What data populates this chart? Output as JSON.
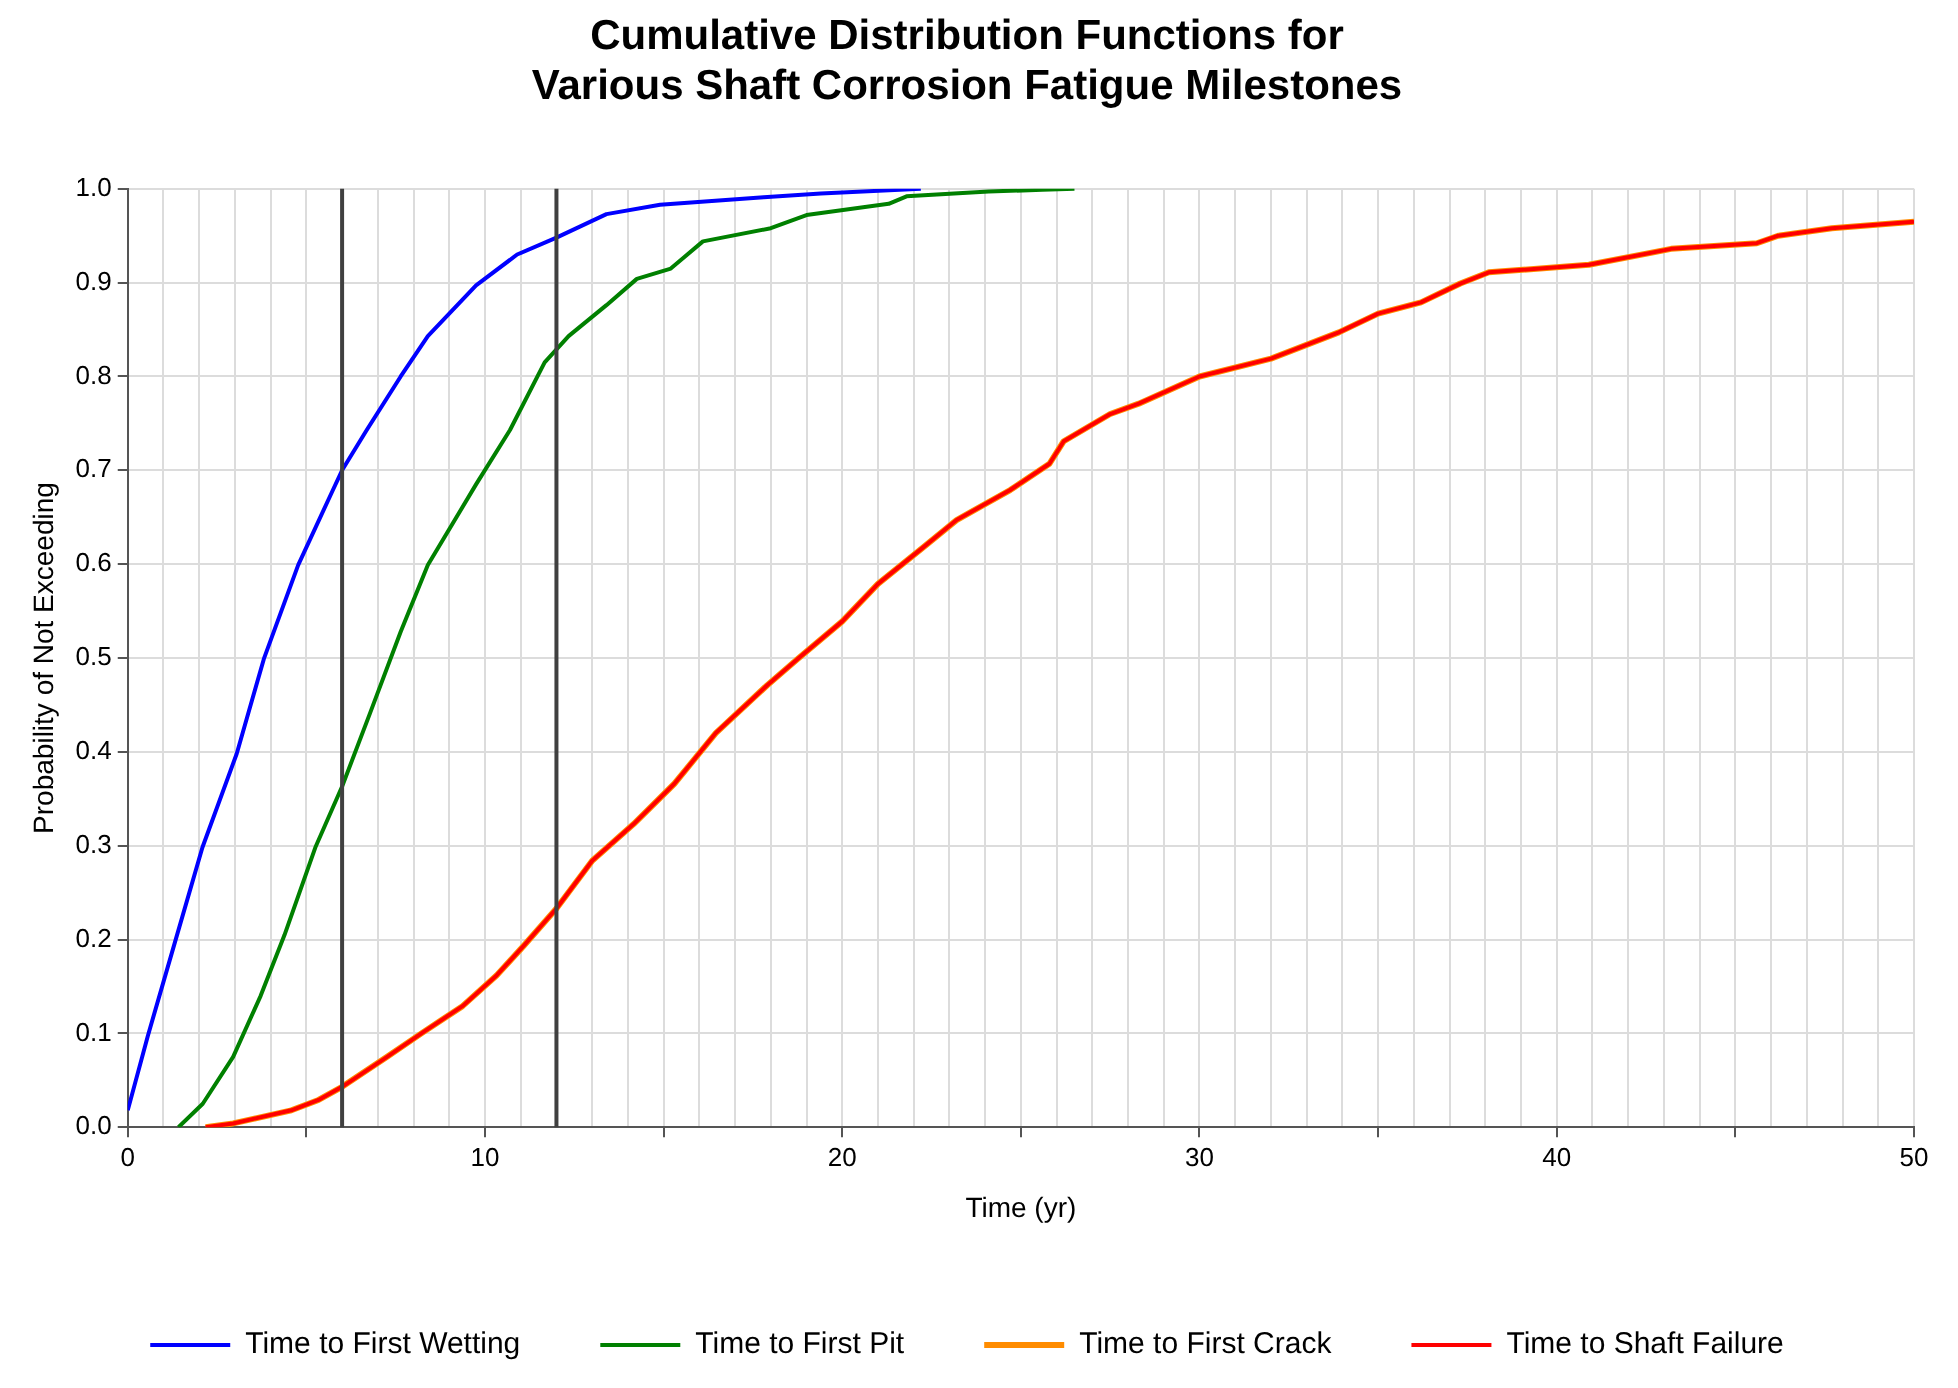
{
  "chart_data": {
    "type": "line",
    "title": "Cumulative Distribution Functions for\nVarious Shaft Corrosion Fatigue Milestones",
    "xlabel": "Time (yr)",
    "ylabel": "Probability of Not Exceeding",
    "xlim": [
      0,
      50
    ],
    "ylim": [
      0,
      1
    ],
    "xticks": [
      0,
      {
        "value": 1,
        "label": null
      },
      {
        "value": 2,
        "label": null
      },
      {
        "value": 3,
        "label": null
      },
      {
        "value": 4,
        "label": null
      },
      {
        "value": 5,
        "label": null
      },
      {
        "value": 6,
        "label": null
      },
      {
        "value": 7,
        "label": null
      },
      {
        "value": 8,
        "label": null
      },
      {
        "value": 9,
        "label": null
      },
      10,
      {
        "value": 11,
        "label": null
      },
      {
        "value": 12,
        "label": null
      },
      {
        "value": 13,
        "label": null
      },
      {
        "value": 14,
        "label": null
      },
      {
        "value": 15,
        "label": null
      },
      {
        "value": 16,
        "label": null
      },
      {
        "value": 17,
        "label": null
      },
      {
        "value": 18,
        "label": null
      },
      {
        "value": 19,
        "label": null
      },
      20,
      {
        "value": 21,
        "label": null
      },
      {
        "value": 22,
        "label": null
      },
      {
        "value": 23,
        "label": null
      },
      {
        "value": 24,
        "label": null
      },
      {
        "value": 25,
        "label": null
      },
      {
        "value": 26,
        "label": null
      },
      {
        "value": 27,
        "label": null
      },
      {
        "value": 28,
        "label": null
      },
      {
        "value": 29,
        "label": null
      },
      30,
      {
        "value": 31,
        "label": null
      },
      {
        "value": 32,
        "label": null
      },
      {
        "value": 33,
        "label": null
      },
      {
        "value": 34,
        "label": null
      },
      {
        "value": 35,
        "label": null
      },
      {
        "value": 36,
        "label": null
      },
      {
        "value": 37,
        "label": null
      },
      {
        "value": 38,
        "label": null
      },
      {
        "value": 39,
        "label": null
      },
      40,
      {
        "value": 41,
        "label": null
      },
      {
        "value": 42,
        "label": null
      },
      {
        "value": 43,
        "label": null
      },
      {
        "value": 44,
        "label": null
      },
      {
        "value": 45,
        "label": null
      },
      {
        "value": 46,
        "label": null
      },
      {
        "value": 47,
        "label": null
      },
      {
        "value": 48,
        "label": null
      },
      {
        "value": 49,
        "label": null
      },
      50
    ],
    "yticks": [
      {
        "value": 0,
        "label": "0.0"
      },
      0.1,
      0.2,
      0.3,
      0.4,
      0.5,
      0.6,
      0.7,
      0.8,
      0.9,
      {
        "value": 1,
        "label": "1.0"
      }
    ],
    "grid": true,
    "legend": "bottom",
    "marker": "none",
    "line_style": "solid",
    "ref_lines": [
      {
        "axis": "x",
        "value": 6,
        "color": "#404040"
      },
      {
        "axis": "x",
        "value": 12,
        "color": "#404040"
      }
    ],
    "series": [
      {
        "name": "Time to First Wetting",
        "color": "#0000ff",
        "x": [
          0,
          0.56,
          1.32,
          2.09,
          3.05,
          3.81,
          4.77,
          5.73,
          6.0,
          6.69,
          7.64,
          8.4,
          9.75,
          10.9,
          12,
          13.4,
          14.9,
          17.8,
          19.4,
          22.2
        ],
        "values": [
          0.018,
          0.097,
          0.197,
          0.298,
          0.398,
          0.499,
          0.599,
          0.678,
          0.7,
          0.743,
          0.8,
          0.843,
          0.897,
          0.93,
          0.948,
          0.973,
          0.983,
          0.991,
          0.995,
          1.0
        ]
      },
      {
        "name": "Time to First Pit",
        "color": "#008000",
        "x": [
          1.42,
          2.1,
          2.95,
          3.72,
          4.39,
          5.25,
          6.0,
          6.78,
          7.64,
          8.4,
          9.75,
          10.7,
          11.67,
          12.34,
          13.4,
          14.25,
          15.2,
          16.1,
          18.0,
          19.0,
          21.3,
          21.8,
          24.1,
          25.6,
          26.5
        ],
        "values": [
          0,
          0.025,
          0.075,
          0.14,
          0.205,
          0.298,
          0.363,
          0.441,
          0.528,
          0.599,
          0.685,
          0.743,
          0.815,
          0.843,
          0.876,
          0.904,
          0.915,
          0.944,
          0.958,
          0.972,
          0.984,
          0.992,
          0.997,
          0.999,
          1.0
        ]
      },
      {
        "name": "Time to First Crack",
        "color": "#ff8c00",
        "x": [
          2.18,
          2.95,
          4.58,
          5.34,
          6.0,
          7.26,
          8.22,
          9.37,
          10.33,
          11.1,
          12.0,
          13.0,
          14.16,
          15.3,
          16.46,
          17.9,
          18.75,
          20.0,
          21.0,
          22.3,
          23.2,
          24.7,
          25.8,
          26.2,
          27.5,
          28.3,
          30.0,
          32.0,
          33.9,
          35.0,
          36.2,
          37.3,
          38.1,
          40.9,
          43.2,
          45.6,
          46.2,
          47.7,
          50
        ],
        "values": [
          0,
          0.004,
          0.018,
          0.029,
          0.043,
          0.075,
          0.1,
          0.129,
          0.162,
          0.194,
          0.233,
          0.284,
          0.323,
          0.366,
          0.42,
          0.471,
          0.499,
          0.539,
          0.579,
          0.619,
          0.647,
          0.679,
          0.707,
          0.731,
          0.76,
          0.771,
          0.8,
          0.819,
          0.847,
          0.867,
          0.879,
          0.899,
          0.911,
          0.919,
          0.936,
          0.942,
          0.95,
          0.958,
          0.965
        ]
      },
      {
        "name": "Time to Shaft Failure",
        "color": "#ff0000",
        "x": [
          2.18,
          2.95,
          4.58,
          5.34,
          6.0,
          7.26,
          8.22,
          9.37,
          10.33,
          11.1,
          12.0,
          13.0,
          14.16,
          15.3,
          16.46,
          17.9,
          18.75,
          20.0,
          21.0,
          22.3,
          23.2,
          24.7,
          25.8,
          26.2,
          27.5,
          28.3,
          30.0,
          32.0,
          33.9,
          35.0,
          36.2,
          37.3,
          38.1,
          40.9,
          43.2,
          45.6,
          46.2,
          47.7,
          50
        ],
        "values": [
          0,
          0.004,
          0.018,
          0.029,
          0.043,
          0.075,
          0.1,
          0.129,
          0.162,
          0.194,
          0.233,
          0.284,
          0.323,
          0.366,
          0.42,
          0.471,
          0.499,
          0.539,
          0.579,
          0.619,
          0.647,
          0.679,
          0.707,
          0.731,
          0.76,
          0.771,
          0.8,
          0.819,
          0.847,
          0.867,
          0.879,
          0.899,
          0.911,
          0.919,
          0.936,
          0.942,
          0.95,
          0.958,
          0.965
        ]
      }
    ]
  }
}
